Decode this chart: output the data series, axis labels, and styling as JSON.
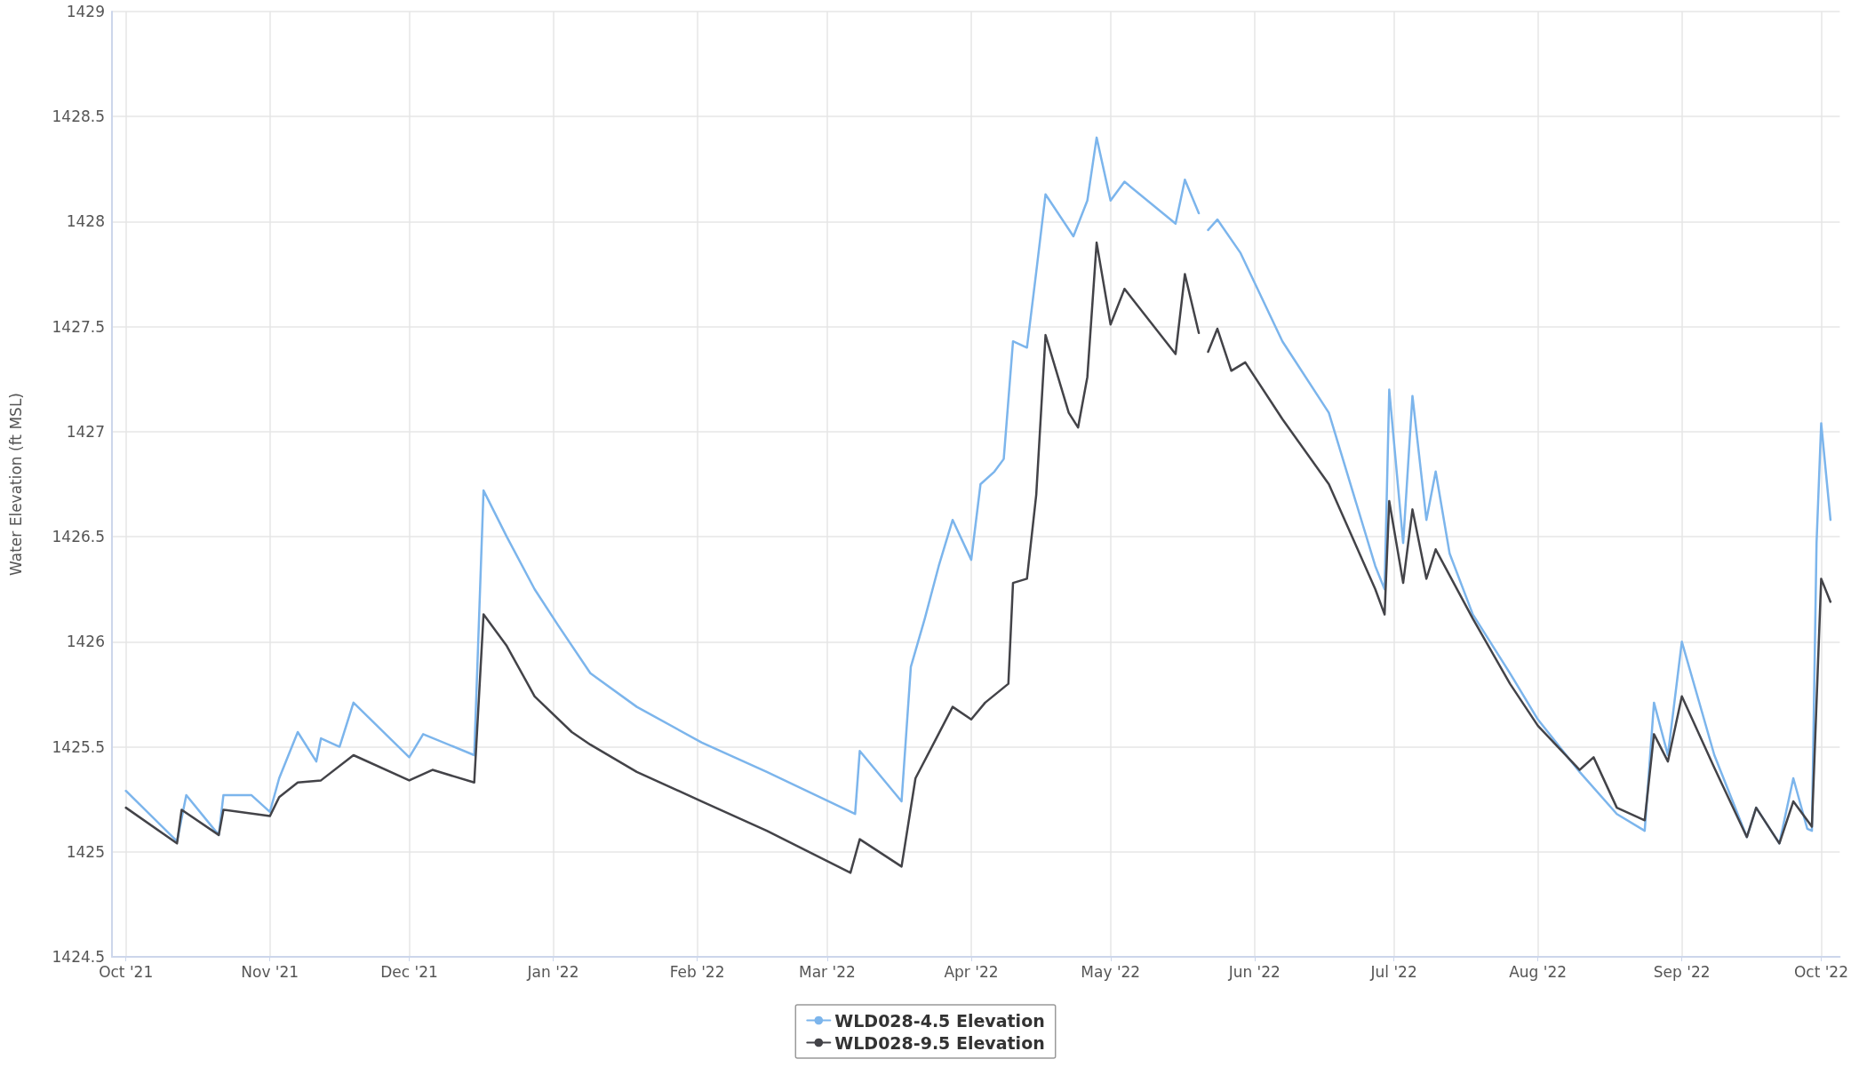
{
  "chart_data": {
    "type": "line",
    "ylabel": "Water Elevation (ft MSL)",
    "xlim": [
      "2021-09-28",
      "2022-10-05"
    ],
    "xticks": [
      {
        "value": "2021-10-01",
        "label": "Oct '21"
      },
      {
        "value": "2021-11-01",
        "label": "Nov '21"
      },
      {
        "value": "2021-12-01",
        "label": "Dec '21"
      },
      {
        "value": "2022-01-01",
        "label": "Jan '22"
      },
      {
        "value": "2022-02-01",
        "label": "Feb '22"
      },
      {
        "value": "2022-03-01",
        "label": "Mar '22"
      },
      {
        "value": "2022-04-01",
        "label": "Apr '22"
      },
      {
        "value": "2022-05-01",
        "label": "May '22"
      },
      {
        "value": "2022-06-01",
        "label": "Jun '22"
      },
      {
        "value": "2022-07-01",
        "label": "Jul '22"
      },
      {
        "value": "2022-08-01",
        "label": "Aug '22"
      },
      {
        "value": "2022-09-01",
        "label": "Sep '22"
      },
      {
        "value": "2022-10-01",
        "label": "Oct '22"
      }
    ],
    "ylim": [
      1424.5,
      1429
    ],
    "yticks": [
      1424.5,
      1425,
      1425.5,
      1426,
      1426.5,
      1427,
      1427.5,
      1428,
      1428.5,
      1429
    ],
    "grid": true,
    "legend": "bottom",
    "marker": "none",
    "line_style": "solid",
    "series": [
      {
        "name": "WLD028-4.5 Elevation",
        "color": "#7cb5ec",
        "x": [
          "2021-10-01",
          "2021-10-12",
          "2021-10-14",
          "2021-10-21",
          "2021-10-22",
          "2021-10-28",
          "2021-11-01",
          "2021-11-03",
          "2021-11-07",
          "2021-11-11",
          "2021-11-12",
          "2021-11-16",
          "2021-11-19",
          "2021-12-01",
          "2021-12-04",
          "2021-12-15",
          "2021-12-17",
          "2021-12-22",
          "2021-12-28",
          "2022-01-02",
          "2022-01-09",
          "2022-01-19",
          "2022-02-02",
          "2022-02-16",
          "2022-03-07",
          "2022-03-08",
          "2022-03-17",
          "2022-03-19",
          "2022-03-22",
          "2022-03-25",
          "2022-03-28",
          "2022-04-01",
          "2022-04-03",
          "2022-04-06",
          "2022-04-08",
          "2022-04-10",
          "2022-04-13",
          "2022-04-15",
          "2022-04-17",
          "2022-04-23",
          "2022-04-26",
          "2022-04-28",
          "2022-05-01",
          "2022-05-04",
          "2022-05-15",
          "2022-05-17",
          "2022-05-20",
          "2022-05-21",
          "2022-05-22",
          "2022-05-24",
          "2022-05-29",
          "2022-06-07",
          "2022-06-17",
          "2022-06-27",
          "2022-06-29",
          "2022-06-30",
          "2022-07-03",
          "2022-07-05",
          "2022-07-08",
          "2022-07-10",
          "2022-07-13",
          "2022-07-18",
          "2022-07-26",
          "2022-08-01",
          "2022-08-10",
          "2022-08-18",
          "2022-08-24",
          "2022-08-26",
          "2022-08-29",
          "2022-09-01",
          "2022-09-08",
          "2022-09-15",
          "2022-09-17",
          "2022-09-22",
          "2022-09-25",
          "2022-09-28",
          "2022-09-29",
          "2022-09-30",
          "2022-10-01",
          "2022-10-03"
        ],
        "values": [
          1425.29,
          1425.05,
          1425.27,
          1425.08,
          1425.27,
          1425.27,
          1425.19,
          1425.35,
          1425.57,
          1425.43,
          1425.54,
          1425.5,
          1425.71,
          1425.45,
          1425.56,
          1425.46,
          1426.72,
          1426.5,
          1426.25,
          1426.08,
          1425.85,
          1425.69,
          1425.52,
          1425.38,
          1425.18,
          1425.48,
          1425.24,
          1425.88,
          1426.11,
          1426.36,
          1426.58,
          1426.39,
          1426.75,
          1426.81,
          1426.87,
          1427.43,
          1427.4,
          1427.76,
          1428.13,
          1427.93,
          1428.1,
          1428.4,
          1428.1,
          1428.19,
          1427.99,
          1428.2,
          1428.04,
          null,
          1427.96,
          1428.01,
          1427.85,
          1427.43,
          1427.09,
          1426.36,
          1426.25,
          1427.2,
          1426.47,
          1427.17,
          1426.58,
          1426.81,
          1426.42,
          1426.13,
          1425.85,
          1425.63,
          1425.38,
          1425.18,
          1425.1,
          1425.71,
          1425.46,
          1426.0,
          1425.46,
          1425.07,
          1425.21,
          1425.04,
          1425.35,
          1425.11,
          1425.1,
          1426.47,
          1427.04,
          1426.58
        ]
      },
      {
        "name": "WLD028-9.5 Elevation",
        "color": "#434348",
        "x": [
          "2021-10-01",
          "2021-10-12",
          "2021-10-13",
          "2021-10-21",
          "2021-10-22",
          "2021-11-01",
          "2021-11-03",
          "2021-11-07",
          "2021-11-12",
          "2021-11-19",
          "2021-12-01",
          "2021-12-06",
          "2021-12-15",
          "2021-12-17",
          "2021-12-22",
          "2021-12-28",
          "2022-01-05",
          "2022-01-09",
          "2022-01-19",
          "2022-02-02",
          "2022-02-16",
          "2022-03-06",
          "2022-03-08",
          "2022-03-17",
          "2022-03-20",
          "2022-03-24",
          "2022-03-28",
          "2022-04-01",
          "2022-04-04",
          "2022-04-09",
          "2022-04-10",
          "2022-04-13",
          "2022-04-15",
          "2022-04-17",
          "2022-04-22",
          "2022-04-24",
          "2022-04-26",
          "2022-04-28",
          "2022-05-01",
          "2022-05-04",
          "2022-05-15",
          "2022-05-17",
          "2022-05-20",
          "2022-05-21",
          "2022-05-22",
          "2022-05-24",
          "2022-05-27",
          "2022-05-30",
          "2022-06-07",
          "2022-06-17",
          "2022-06-27",
          "2022-06-29",
          "2022-06-30",
          "2022-07-03",
          "2022-07-05",
          "2022-07-08",
          "2022-07-10",
          "2022-07-18",
          "2022-07-26",
          "2022-08-01",
          "2022-08-10",
          "2022-08-13",
          "2022-08-18",
          "2022-08-24",
          "2022-08-26",
          "2022-08-29",
          "2022-09-01",
          "2022-09-08",
          "2022-09-15",
          "2022-09-17",
          "2022-09-22",
          "2022-09-25",
          "2022-09-29",
          "2022-10-01",
          "2022-10-03"
        ],
        "values": [
          1425.21,
          1425.04,
          1425.2,
          1425.08,
          1425.2,
          1425.17,
          1425.26,
          1425.33,
          1425.34,
          1425.46,
          1425.34,
          1425.39,
          1425.33,
          1426.13,
          1425.98,
          1425.74,
          1425.57,
          1425.51,
          1425.38,
          1425.24,
          1425.1,
          1424.9,
          1425.06,
          1424.93,
          1425.35,
          1425.52,
          1425.69,
          1425.63,
          1425.71,
          1425.8,
          1426.28,
          1426.3,
          1426.7,
          1427.46,
          1427.09,
          1427.02,
          1427.26,
          1427.9,
          1427.51,
          1427.68,
          1427.37,
          1427.75,
          1427.47,
          null,
          1427.38,
          1427.49,
          1427.29,
          1427.33,
          1427.06,
          1426.75,
          1426.25,
          1426.13,
          1426.67,
          1426.28,
          1426.63,
          1426.3,
          1426.44,
          1426.11,
          1425.8,
          1425.6,
          1425.39,
          1425.45,
          1425.21,
          1425.15,
          1425.56,
          1425.43,
          1425.74,
          1425.4,
          1425.07,
          1425.21,
          1425.04,
          1425.24,
          1425.12,
          1426.3,
          1426.19
        ]
      }
    ]
  }
}
